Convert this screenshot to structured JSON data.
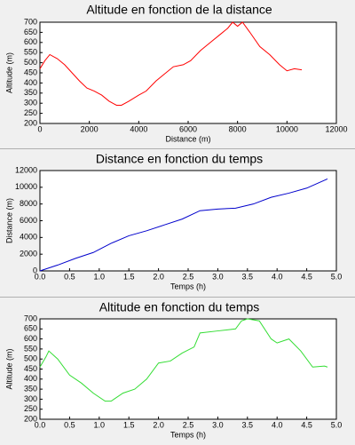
{
  "chart_data": [
    {
      "type": "line",
      "title": "Altitude en fonction de la distance",
      "xlabel": "Distance (m)",
      "ylabel": "Altitude (m)",
      "x": [
        0,
        200,
        400,
        700,
        1000,
        1300,
        1600,
        1900,
        2200,
        2500,
        2800,
        3100,
        3300,
        3600,
        4000,
        4300,
        4700,
        5000,
        5400,
        5800,
        6100,
        6500,
        6900,
        7300,
        7600,
        7800,
        8000,
        8200,
        8500,
        8900,
        9300,
        9700,
        10000,
        10300,
        10600
      ],
      "series": [
        {
          "color": "#ff0000",
          "values": [
            470,
            510,
            540,
            520,
            490,
            450,
            410,
            375,
            360,
            340,
            310,
            290,
            290,
            310,
            340,
            360,
            410,
            440,
            480,
            490,
            510,
            560,
            600,
            640,
            670,
            700,
            680,
            700,
            650,
            580,
            540,
            490,
            460,
            470,
            465
          ]
        }
      ],
      "xlim": [
        0,
        12000
      ],
      "xticks": [
        0,
        2000,
        4000,
        6000,
        8000,
        10000,
        12000
      ],
      "ylim": [
        200,
        700
      ],
      "yticks": [
        200,
        250,
        300,
        350,
        400,
        450,
        500,
        550,
        600,
        650,
        700
      ]
    },
    {
      "type": "line",
      "title": "Distance en fonction du temps",
      "xlabel": "Temps (h)",
      "ylabel": "Distance (m)",
      "x": [
        0,
        0.3,
        0.6,
        0.9,
        1.2,
        1.5,
        1.8,
        2.1,
        2.4,
        2.7,
        3.0,
        3.3,
        3.6,
        3.9,
        4.2,
        4.5,
        4.85
      ],
      "series": [
        {
          "color": "#0000cc",
          "values": [
            0,
            700,
            1500,
            2200,
            3300,
            4200,
            4800,
            5500,
            6200,
            7200,
            7400,
            7500,
            8000,
            8800,
            9300,
            9900,
            11000
          ]
        }
      ],
      "xlim": [
        0,
        5
      ],
      "xticks": [
        {
          "value": 0,
          "label": "0.0"
        },
        0.5,
        {
          "value": 1,
          "label": "1.0"
        },
        1.5,
        {
          "value": 2,
          "label": "2.0"
        },
        2.5,
        {
          "value": 3,
          "label": "3.0"
        },
        3.5,
        {
          "value": 4,
          "label": "4.0"
        },
        4.5,
        {
          "value": 5,
          "label": "5.0"
        }
      ],
      "ylim": [
        0,
        12000
      ],
      "yticks": [
        0,
        2000,
        4000,
        6000,
        8000,
        10000,
        12000
      ]
    },
    {
      "type": "line",
      "title": "Altitude en fonction du temps",
      "xlabel": "Temps (h)",
      "ylabel": "Altitude (m)",
      "x": [
        0,
        0.1,
        0.15,
        0.3,
        0.5,
        0.7,
        0.9,
        1.1,
        1.2,
        1.4,
        1.6,
        1.8,
        2.0,
        2.2,
        2.4,
        2.6,
        2.7,
        3.0,
        3.3,
        3.4,
        3.5,
        3.7,
        3.9,
        4.0,
        4.2,
        4.4,
        4.6,
        4.8,
        4.85
      ],
      "series": [
        {
          "color": "#33dd33",
          "values": [
            460,
            510,
            540,
            500,
            420,
            380,
            330,
            290,
            290,
            330,
            350,
            400,
            480,
            490,
            530,
            560,
            630,
            640,
            650,
            690,
            700,
            690,
            600,
            580,
            600,
            540,
            460,
            465,
            460
          ]
        }
      ],
      "xlim": [
        0,
        5
      ],
      "xticks": [
        {
          "value": 0,
          "label": "0.0"
        },
        0.5,
        {
          "value": 1,
          "label": "1.0"
        },
        1.5,
        {
          "value": 2,
          "label": "2.0"
        },
        2.5,
        {
          "value": 3,
          "label": "3.0"
        },
        3.5,
        {
          "value": 4,
          "label": "4.0"
        },
        4.5,
        {
          "value": 5,
          "label": "5.0"
        }
      ],
      "ylim": [
        200,
        700
      ],
      "yticks": [
        200,
        250,
        300,
        350,
        400,
        450,
        500,
        550,
        600,
        650,
        700
      ]
    }
  ]
}
